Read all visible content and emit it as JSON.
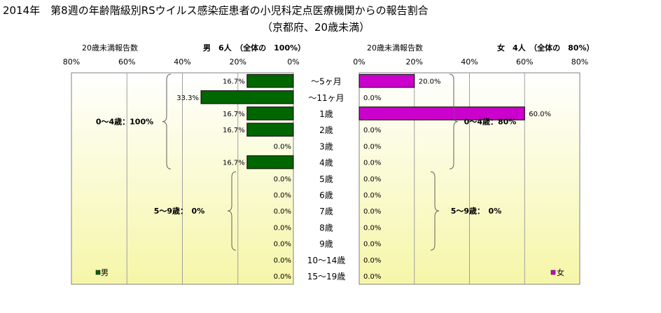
{
  "title": "2014年　第8週の年齢階級別RSウイルス感染症患者の小児科定点医療機関からの報告割合",
  "subtitle": "（京都府、20歳未満）",
  "chart_data": [
    {
      "type": "bar",
      "orientation": "horizontal-reversed",
      "panel": "male",
      "axis_caption": "20歳未満報告数",
      "header": "男　6人　（全体の　100%）",
      "legend": "男",
      "legend_placement": "bottom-left",
      "bar_color": "#006600",
      "xlim": [
        0,
        80
      ],
      "ticks": [
        "80%",
        "60%",
        "40%",
        "20%",
        "0%"
      ],
      "categories": [
        "～5ヶ月",
        "～11ヶ月",
        "1歳",
        "2歳",
        "3歳",
        "4歳",
        "5歳",
        "6歳",
        "7歳",
        "8歳",
        "9歳",
        "10～14歳",
        "15～19歳"
      ],
      "values": [
        16.7,
        33.3,
        16.7,
        16.7,
        0.0,
        16.7,
        0.0,
        0.0,
        0.0,
        0.0,
        0.0,
        0.0,
        0.0
      ],
      "value_labels": [
        "16.7%",
        "33.3%",
        "16.7%",
        "16.7%",
        "0.0%",
        "16.7%",
        "0.0%",
        "0.0%",
        "0.0%",
        "0.0%",
        "0.0%",
        "0.0%",
        "0.0%"
      ],
      "groups": [
        {
          "label": "0～4歳：100%",
          "from": 0,
          "to": 5
        },
        {
          "label": "5～9歳：　0%",
          "from": 6,
          "to": 10
        }
      ]
    },
    {
      "type": "bar",
      "orientation": "horizontal",
      "panel": "female",
      "axis_caption": "20歳未満報告数",
      "header": "女　4人　（全体の　80%）",
      "legend": "女",
      "legend_placement": "bottom-right",
      "bar_color": "#cc00cc",
      "xlim": [
        0,
        80
      ],
      "ticks": [
        "0%",
        "20%",
        "40%",
        "60%",
        "80%"
      ],
      "categories": [
        "～5ヶ月",
        "～11ヶ月",
        "1歳",
        "2歳",
        "3歳",
        "4歳",
        "5歳",
        "6歳",
        "7歳",
        "8歳",
        "9歳",
        "10～14歳",
        "15～19歳"
      ],
      "values": [
        20.0,
        0.0,
        60.0,
        0.0,
        0.0,
        0.0,
        0.0,
        0.0,
        0.0,
        0.0,
        0.0,
        0.0,
        0.0
      ],
      "value_labels": [
        "20.0%",
        "0.0%",
        "60.0%",
        "0.0%",
        "0.0%",
        "0.0%",
        "0.0%",
        "0.0%",
        "0.0%",
        "0.0%",
        "0.0%",
        "0.0%",
        "0.0%"
      ],
      "groups": [
        {
          "label": "0～4歳：80%",
          "from": 0,
          "to": 5
        },
        {
          "label": "5～9歳：　0%",
          "from": 6,
          "to": 10
        }
      ]
    }
  ]
}
